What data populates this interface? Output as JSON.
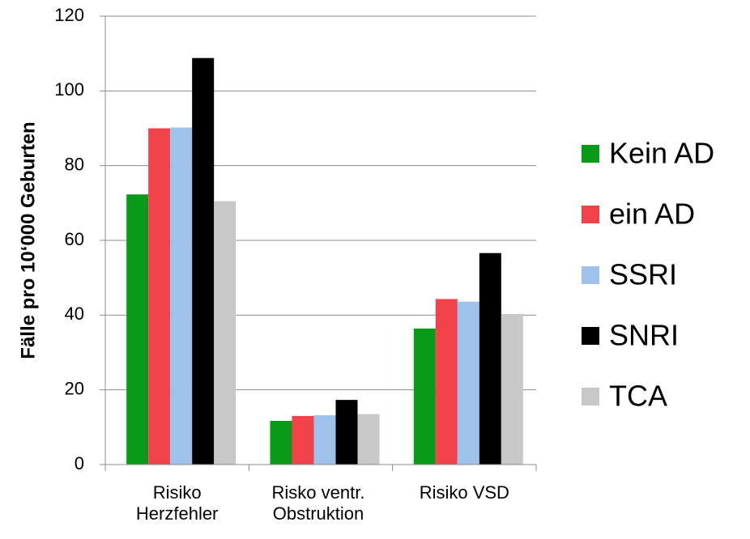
{
  "chart_data": {
    "type": "bar",
    "ylabel": "Fälle pro 10‘000 Geburten",
    "categories": [
      "Risiko Herzfehler",
      "Risko ventr. Obstruktion",
      "Risiko VSD"
    ],
    "series": [
      {
        "name": "Kein AD",
        "color": "#0a9a1a",
        "values": [
          72.3,
          11.7,
          36.4
        ]
      },
      {
        "name": "ein AD",
        "color": "#f2424a",
        "values": [
          90,
          13,
          44.3
        ]
      },
      {
        "name": "SSRI",
        "color": "#9fc2ea",
        "values": [
          90.2,
          13.2,
          43.6
        ]
      },
      {
        "name": "SNRI",
        "color": "#000000",
        "values": [
          108.8,
          17.3,
          56.6
        ]
      },
      {
        "name": "TCA",
        "color": "#c8c8c8",
        "values": [
          70.5,
          13.5,
          40.3
        ]
      }
    ],
    "ylim": [
      0,
      120
    ],
    "yticks": [
      0,
      20,
      40,
      60,
      80,
      100,
      120
    ],
    "grid": true,
    "legend": "right"
  }
}
